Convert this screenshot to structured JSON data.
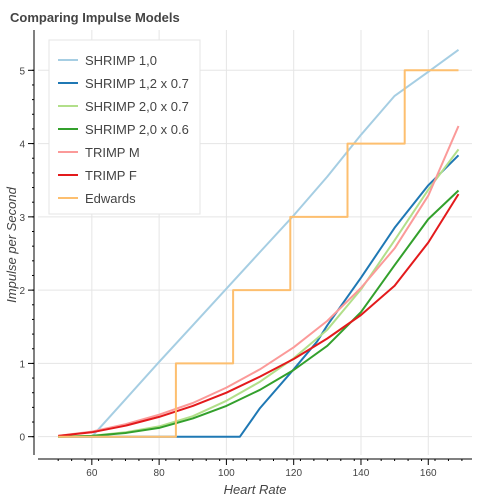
{
  "chart_data": {
    "type": "line",
    "title": "Comparing Impulse Models",
    "xlabel": "Heart Rate",
    "ylabel": "Impulse per Second",
    "xlim": [
      44,
      173
    ],
    "ylim": [
      -0.25,
      5.55
    ],
    "xticks": [
      60,
      80,
      100,
      120,
      140,
      160
    ],
    "yticks": [
      0,
      1,
      2,
      3,
      4,
      5
    ],
    "grid": true,
    "legend_position": "top-left",
    "series": [
      {
        "name": "SHRIMP 1,0",
        "color": "#a6cee3",
        "x": [
          50,
          60,
          70,
          80,
          90,
          100,
          110,
          120,
          130,
          140,
          150,
          160,
          169
        ],
        "y": [
          0,
          0,
          0.51,
          1.02,
          1.52,
          2.02,
          2.52,
          3.02,
          3.55,
          4.12,
          4.65,
          4.98,
          5.28
        ]
      },
      {
        "name": "SHRIMP 1,2 x 0.7",
        "color": "#1f78b4",
        "x": [
          50,
          104,
          110,
          120,
          127,
          130,
          140,
          150,
          160,
          169
        ],
        "y": [
          0,
          0,
          0.39,
          0.92,
          1.3,
          1.52,
          2.17,
          2.85,
          3.43,
          3.84
        ]
      },
      {
        "name": "SHRIMP 2,0 x 0.7",
        "color": "#b2df8a",
        "x": [
          50,
          60,
          70,
          80,
          90,
          100,
          110,
          120,
          130,
          140,
          150,
          160,
          169
        ],
        "y": [
          0,
          0.01,
          0.06,
          0.14,
          0.28,
          0.49,
          0.75,
          1.07,
          1.46,
          2.01,
          2.68,
          3.37,
          3.92
        ]
      },
      {
        "name": "SHRIMP 2,0 x 0.6",
        "color": "#33a02c",
        "x": [
          50,
          60,
          70,
          80,
          90,
          100,
          110,
          120,
          130,
          140,
          150,
          160,
          169
        ],
        "y": [
          0,
          0.01,
          0.05,
          0.12,
          0.25,
          0.42,
          0.64,
          0.91,
          1.24,
          1.7,
          2.34,
          2.97,
          3.36
        ]
      },
      {
        "name": "TRIMP M",
        "color": "#fb9a99",
        "x": [
          50,
          60,
          70,
          80,
          90,
          100,
          110,
          120,
          130,
          140,
          150,
          160,
          169
        ],
        "y": [
          0.01,
          0.07,
          0.17,
          0.3,
          0.46,
          0.67,
          0.92,
          1.22,
          1.58,
          2.03,
          2.57,
          3.29,
          4.24
        ]
      },
      {
        "name": "TRIMP F",
        "color": "#e31a1c",
        "x": [
          50,
          60,
          70,
          80,
          90,
          100,
          110,
          120,
          130,
          140,
          150,
          160,
          169
        ],
        "y": [
          0.01,
          0.06,
          0.15,
          0.27,
          0.42,
          0.6,
          0.82,
          1.06,
          1.34,
          1.66,
          2.06,
          2.65,
          3.31
        ]
      },
      {
        "name": "Edwards",
        "color": "#fdbf6f",
        "x": [
          50,
          85,
          85,
          102,
          102,
          119,
          119,
          136,
          136,
          153,
          153,
          169
        ],
        "y": [
          0,
          0,
          1,
          1,
          2,
          2,
          3,
          3,
          4,
          4,
          5,
          5
        ]
      }
    ]
  }
}
